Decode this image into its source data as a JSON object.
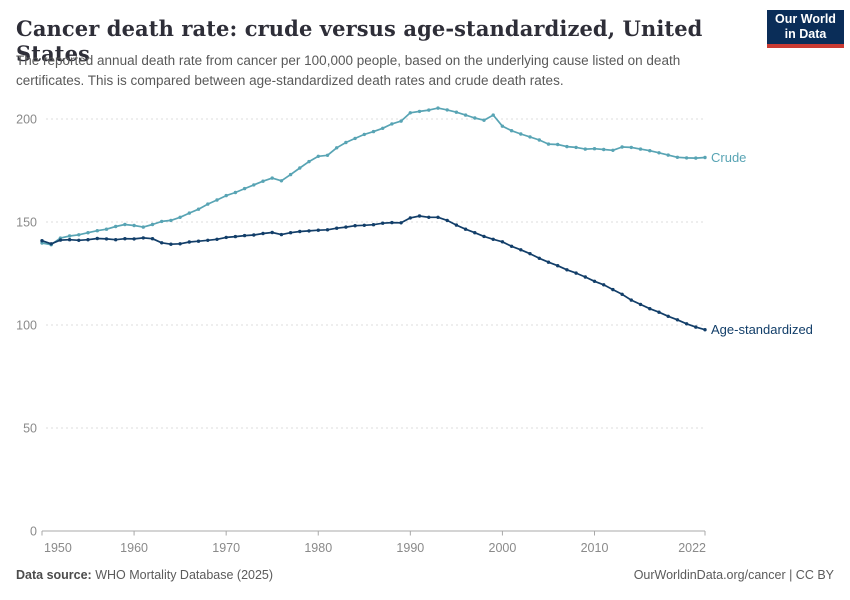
{
  "header": {
    "title": "Cancer death rate: crude versus age-standardized, United States",
    "subtitle": "The reported annual death rate from cancer per 100,000 people, based on the underlying cause listed on death certificates. This is compared between age-standardized death rates and crude death rates.",
    "logo": {
      "line1": "Our World",
      "line2": "in Data"
    }
  },
  "chart_data": {
    "type": "line",
    "title": "Cancer death rate: crude versus age-standardized, United States",
    "xlabel": "",
    "ylabel": "",
    "unit": "deaths per 100,000 people",
    "grid": "horizontal-dashed",
    "legend_position": "end-of-line-labels",
    "xlim": [
      1950,
      2022
    ],
    "ylim": [
      0,
      210
    ],
    "xticks": [
      1950,
      1960,
      1970,
      1980,
      1990,
      2000,
      2010,
      2022
    ],
    "yticks": [
      0,
      50,
      100,
      150,
      200
    ],
    "x": [
      1950,
      1951,
      1952,
      1953,
      1954,
      1955,
      1956,
      1957,
      1958,
      1959,
      1960,
      1961,
      1962,
      1963,
      1964,
      1965,
      1966,
      1967,
      1968,
      1969,
      1970,
      1971,
      1972,
      1973,
      1974,
      1975,
      1976,
      1977,
      1978,
      1979,
      1980,
      1981,
      1982,
      1983,
      1984,
      1985,
      1986,
      1987,
      1988,
      1989,
      1990,
      1991,
      1992,
      1993,
      1994,
      1995,
      1996,
      1997,
      1998,
      1999,
      2000,
      2001,
      2002,
      2003,
      2004,
      2005,
      2006,
      2007,
      2008,
      2009,
      2010,
      2011,
      2012,
      2013,
      2014,
      2015,
      2016,
      2017,
      2018,
      2019,
      2020,
      2021,
      2022
    ],
    "series": [
      {
        "name": "Crude",
        "color": "#58a4b4",
        "values": [
          139.8,
          139.0,
          142.2,
          143.2,
          143.8,
          144.8,
          145.8,
          146.5,
          147.8,
          148.8,
          148.3,
          147.5,
          148.8,
          150.3,
          150.8,
          152.3,
          154.3,
          156.2,
          158.7,
          160.7,
          162.8,
          164.3,
          166.2,
          168.0,
          169.8,
          171.3,
          170.0,
          173.0,
          176.2,
          179.3,
          181.9,
          182.4,
          186.0,
          188.6,
          190.6,
          192.5,
          193.9,
          195.5,
          197.6,
          199.0,
          203.0,
          203.7,
          204.3,
          205.3,
          204.4,
          203.3,
          201.9,
          200.5,
          199.4,
          201.9,
          196.5,
          194.3,
          192.7,
          191.3,
          189.8,
          187.8,
          187.6,
          186.6,
          186.2,
          185.4,
          185.6,
          185.2,
          184.8,
          186.4,
          186.2,
          185.4,
          184.6,
          183.6,
          182.5,
          181.4,
          181.1,
          181.0,
          181.3
        ]
      },
      {
        "name": "Age-standardized",
        "color": "#123e69",
        "values": [
          140.9,
          139.4,
          141.2,
          141.4,
          141.1,
          141.4,
          142.0,
          141.8,
          141.4,
          141.9,
          141.8,
          142.3,
          141.9,
          139.9,
          139.2,
          139.4,
          140.3,
          140.7,
          141.1,
          141.6,
          142.5,
          142.9,
          143.4,
          143.7,
          144.4,
          144.9,
          143.9,
          144.8,
          145.4,
          145.7,
          146.0,
          146.2,
          147.0,
          147.5,
          148.2,
          148.4,
          148.7,
          149.4,
          149.7,
          149.6,
          152.0,
          152.9,
          152.3,
          152.3,
          150.8,
          148.5,
          146.5,
          144.8,
          143.0,
          141.6,
          140.4,
          138.2,
          136.5,
          134.6,
          132.4,
          130.5,
          128.8,
          126.8,
          125.2,
          123.3,
          121.2,
          119.5,
          117.2,
          114.9,
          112.1,
          110.0,
          107.9,
          106.2,
          104.2,
          102.5,
          100.6,
          99.0,
          97.7
        ]
      }
    ],
    "axis_color": "#a8a8a8",
    "gridline_color": "#dcdcdc",
    "tick_label_color": "#8a8a8a"
  },
  "footer": {
    "source_label": "Data source:",
    "source_text": " WHO Mortality Database (2025)",
    "right_text": "OurWorldinData.org/cancer | CC BY"
  }
}
